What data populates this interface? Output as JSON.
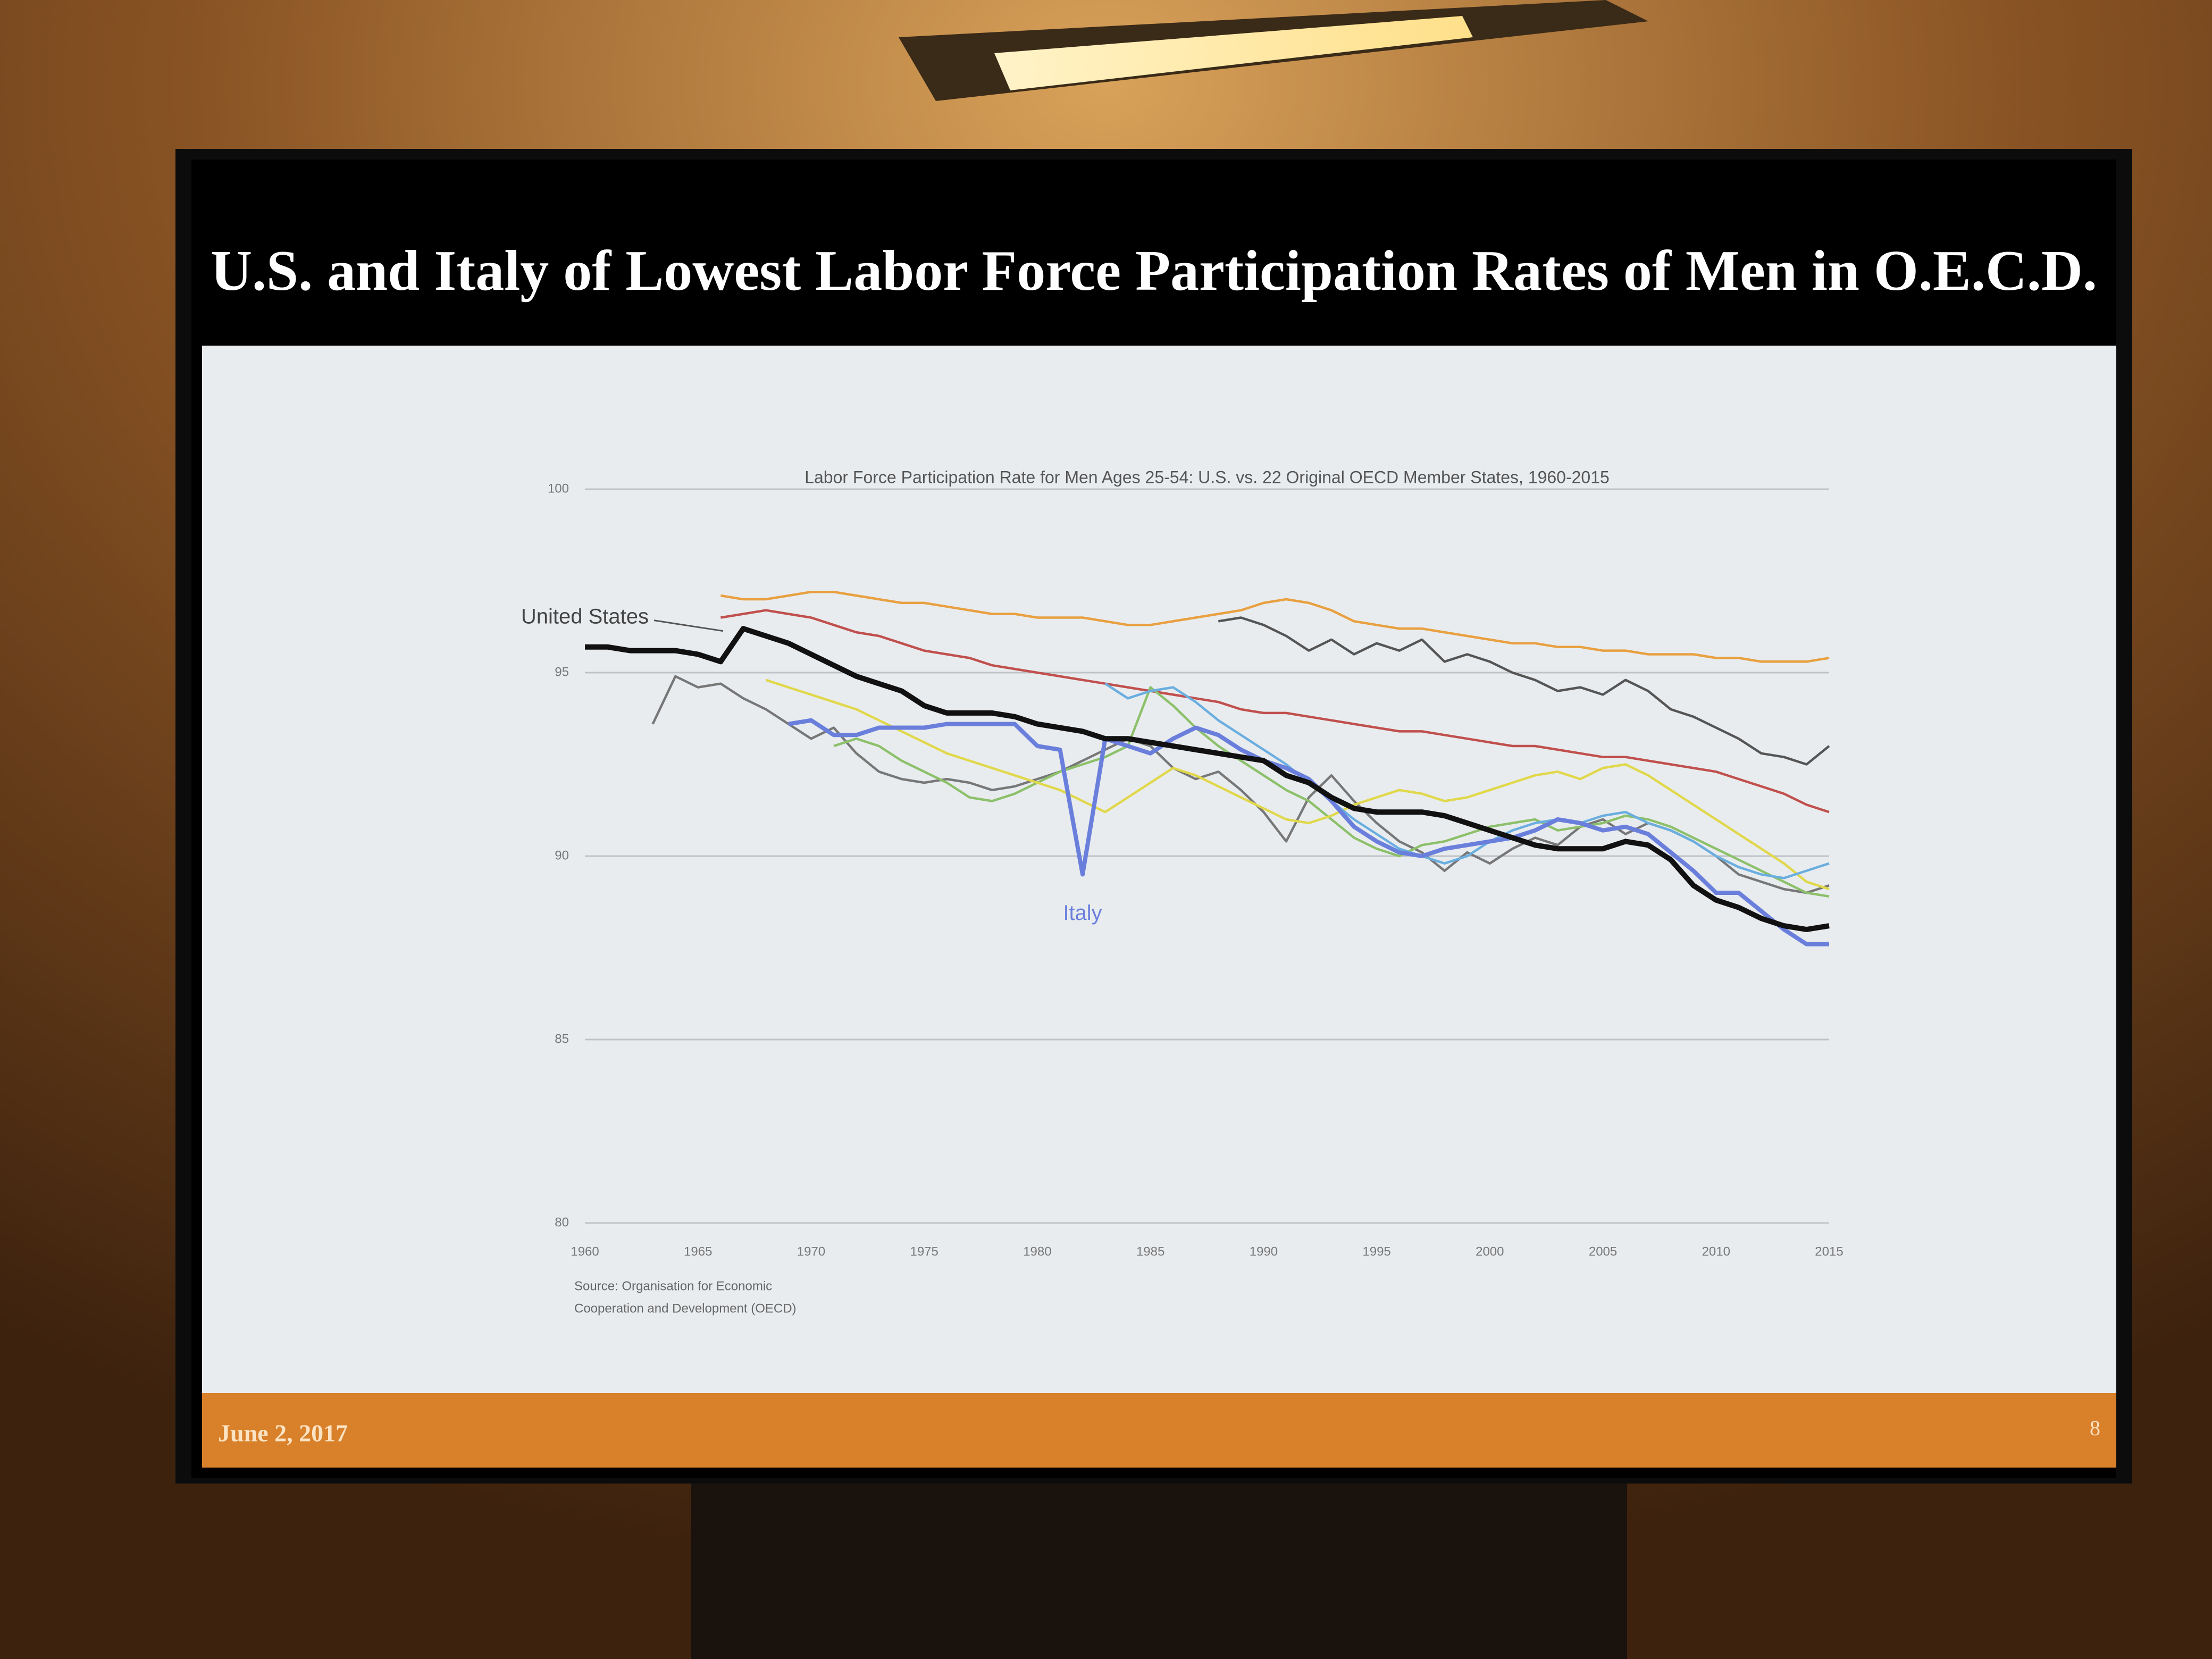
{
  "slide": {
    "title": "U.S. and Italy of Lowest Labor Force Participation Rates of Men in O.E.C.D.",
    "date": "June 2, 2017",
    "page_number": 8
  },
  "chart_data": {
    "type": "line",
    "title": "Labor Force Participation Rate for Men Ages 25-54: U.S. vs. 22 Original OECD Member States, 1960-2015",
    "source": [
      "Source: Organisation for Economic",
      "Cooperation and Development (OECD)"
    ],
    "x": [
      1960,
      1961,
      1962,
      1963,
      1964,
      1965,
      1966,
      1967,
      1968,
      1969,
      1970,
      1971,
      1972,
      1973,
      1974,
      1975,
      1976,
      1977,
      1978,
      1979,
      1980,
      1981,
      1982,
      1983,
      1984,
      1985,
      1986,
      1987,
      1988,
      1989,
      1990,
      1991,
      1992,
      1993,
      1994,
      1995,
      1996,
      1997,
      1998,
      1999,
      2000,
      2001,
      2002,
      2003,
      2004,
      2005,
      2006,
      2007,
      2008,
      2009,
      2010,
      2011,
      2012,
      2013,
      2014,
      2015
    ],
    "xlim": [
      1960,
      2015
    ],
    "xticks": [
      1960,
      1965,
      1970,
      1975,
      1980,
      1985,
      1990,
      1995,
      2000,
      2005,
      2010,
      2015
    ],
    "ylim": [
      80,
      100
    ],
    "yticks": [
      80,
      85,
      90,
      95,
      100
    ],
    "grid": true,
    "series": [
      {
        "color": "#e8a040",
        "values": [
          null,
          null,
          null,
          null,
          null,
          null,
          97.1,
          97.0,
          97.0,
          97.1,
          97.2,
          97.2,
          97.1,
          97.0,
          96.9,
          96.9,
          96.8,
          96.7,
          96.6,
          96.6,
          96.5,
          96.5,
          96.5,
          96.4,
          96.3,
          96.3,
          96.4,
          96.5,
          96.6,
          96.7,
          96.9,
          97.0,
          96.9,
          96.7,
          96.4,
          96.3,
          96.2,
          96.2,
          96.1,
          96.0,
          95.9,
          95.8,
          95.8,
          95.7,
          95.7,
          95.6,
          95.6,
          95.5,
          95.5,
          95.5,
          95.4,
          95.4,
          95.3,
          95.3,
          95.3,
          95.4
        ]
      },
      {
        "color": "#555555",
        "values": [
          null,
          null,
          null,
          null,
          null,
          null,
          null,
          null,
          null,
          null,
          null,
          null,
          null,
          null,
          null,
          null,
          null,
          null,
          null,
          null,
          null,
          null,
          null,
          null,
          null,
          null,
          null,
          null,
          96.4,
          96.5,
          96.3,
          96.0,
          95.6,
          95.9,
          95.5,
          95.8,
          95.6,
          95.9,
          95.3,
          95.5,
          95.3,
          95.0,
          94.8,
          94.5,
          94.6,
          94.4,
          94.8,
          94.5,
          94.0,
          93.8,
          93.5,
          93.2,
          92.8,
          92.7,
          92.5,
          93.0
        ]
      },
      {
        "color": "#c0504d",
        "values": [
          null,
          null,
          null,
          null,
          null,
          null,
          96.5,
          96.6,
          96.7,
          96.6,
          96.5,
          96.3,
          96.1,
          96.0,
          95.8,
          95.6,
          95.5,
          95.4,
          95.2,
          95.1,
          95.0,
          94.9,
          94.8,
          94.7,
          94.6,
          94.5,
          94.4,
          94.3,
          94.2,
          94.0,
          93.9,
          93.9,
          93.8,
          93.7,
          93.6,
          93.5,
          93.4,
          93.4,
          93.3,
          93.2,
          93.1,
          93.0,
          93.0,
          92.9,
          92.8,
          92.7,
          92.7,
          92.6,
          92.5,
          92.4,
          92.3,
          92.1,
          91.9,
          91.7,
          91.4,
          91.2
        ]
      },
      {
        "color": "#777777",
        "values": [
          null,
          null,
          null,
          93.6,
          94.9,
          94.6,
          94.7,
          94.3,
          94.0,
          93.6,
          93.2,
          93.5,
          92.8,
          92.3,
          92.1,
          92.0,
          92.1,
          92.0,
          91.8,
          91.9,
          92.1,
          92.3,
          92.6,
          92.9,
          93.2,
          93.0,
          92.4,
          92.1,
          92.3,
          91.8,
          91.2,
          90.4,
          91.6,
          92.2,
          91.5,
          90.9,
          90.4,
          90.1,
          89.6,
          90.1,
          89.8,
          90.2,
          90.5,
          90.3,
          90.8,
          91.0,
          90.6,
          90.9,
          90.7,
          90.4,
          90.0,
          89.5,
          89.3,
          89.1,
          89.0,
          89.2
        ]
      },
      {
        "color": "#8cc06a",
        "values": [
          null,
          null,
          null,
          null,
          null,
          null,
          null,
          null,
          null,
          null,
          null,
          93.0,
          93.2,
          93.0,
          92.6,
          92.3,
          92.0,
          91.6,
          91.5,
          91.7,
          92.0,
          92.3,
          92.5,
          92.7,
          93.0,
          94.6,
          94.1,
          93.5,
          93.0,
          92.6,
          92.2,
          91.8,
          91.5,
          91.0,
          90.5,
          90.2,
          90.0,
          90.3,
          90.4,
          90.6,
          90.8,
          90.9,
          91.0,
          90.7,
          90.8,
          90.9,
          91.1,
          91.0,
          90.8,
          90.5,
          90.2,
          89.9,
          89.6,
          89.3,
          89.0,
          88.9
        ]
      },
      {
        "color": "#e0d84a",
        "values": [
          null,
          null,
          null,
          null,
          null,
          null,
          null,
          null,
          94.8,
          94.6,
          94.4,
          94.2,
          94.0,
          93.7,
          93.4,
          93.1,
          92.8,
          92.6,
          92.4,
          92.2,
          92.0,
          91.8,
          91.5,
          91.2,
          91.6,
          92.0,
          92.4,
          92.2,
          91.9,
          91.6,
          91.3,
          91.0,
          90.9,
          91.1,
          91.4,
          91.6,
          91.8,
          91.7,
          91.5,
          91.6,
          91.8,
          92.0,
          92.2,
          92.3,
          92.1,
          92.4,
          92.5,
          92.2,
          91.8,
          91.4,
          91.0,
          90.6,
          90.2,
          89.8,
          89.3,
          89.1
        ]
      },
      {
        "color": "#6aaee0",
        "values": [
          null,
          null,
          null,
          null,
          null,
          null,
          null,
          null,
          null,
          null,
          null,
          null,
          null,
          null,
          null,
          null,
          null,
          null,
          null,
          null,
          null,
          null,
          null,
          94.7,
          94.3,
          94.5,
          94.6,
          94.2,
          93.7,
          93.3,
          92.9,
          92.5,
          92.0,
          91.5,
          91.0,
          90.6,
          90.2,
          90.0,
          89.8,
          90.0,
          90.4,
          90.7,
          90.9,
          91.0,
          90.9,
          91.1,
          91.2,
          90.9,
          90.7,
          90.4,
          90.0,
          89.7,
          89.5,
          89.4,
          89.6,
          89.8
        ]
      },
      {
        "name": "Italy",
        "color": "#6a7fdc",
        "values": [
          null,
          null,
          null,
          null,
          null,
          null,
          null,
          null,
          null,
          93.6,
          93.7,
          93.3,
          93.3,
          93.5,
          93.5,
          93.5,
          93.6,
          93.6,
          93.6,
          93.6,
          93.0,
          92.9,
          89.5,
          93.2,
          93.0,
          92.8,
          93.2,
          93.5,
          93.3,
          92.9,
          92.6,
          92.4,
          92.1,
          91.5,
          90.8,
          90.4,
          90.1,
          90.0,
          90.2,
          90.3,
          90.4,
          90.5,
          90.7,
          91.0,
          90.9,
          90.7,
          90.8,
          90.6,
          90.1,
          89.6,
          89.0,
          89.0,
          88.5,
          88.0,
          87.6,
          87.6
        ]
      },
      {
        "name": "United States",
        "color": "#111111",
        "values": [
          95.7,
          95.7,
          95.6,
          95.6,
          95.6,
          95.5,
          95.3,
          96.2,
          96.0,
          95.8,
          95.5,
          95.2,
          94.9,
          94.7,
          94.5,
          94.1,
          93.9,
          93.9,
          93.9,
          93.8,
          93.6,
          93.5,
          93.4,
          93.2,
          93.2,
          93.1,
          93.0,
          92.9,
          92.8,
          92.7,
          92.6,
          92.2,
          92.0,
          91.6,
          91.3,
          91.2,
          91.2,
          91.2,
          91.1,
          90.9,
          90.7,
          90.5,
          90.3,
          90.2,
          90.2,
          90.2,
          90.4,
          90.3,
          89.9,
          89.2,
          88.8,
          88.6,
          88.3,
          88.1,
          88.0,
          88.1
        ]
      }
    ]
  }
}
